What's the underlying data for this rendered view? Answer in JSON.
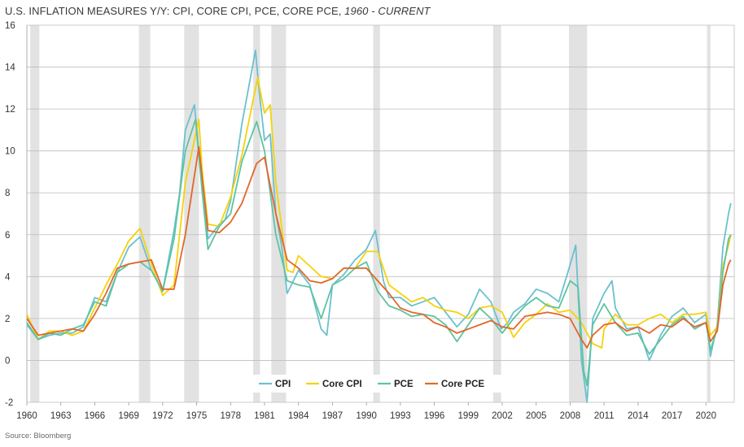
{
  "title": {
    "main": "U.S. INFLATION MEASURES Y/Y: CPI, CORE CPI, PCE, CORE PCE, ",
    "italic": "1960 - CURRENT"
  },
  "source": "Source: Bloomberg",
  "chart_data": {
    "type": "line",
    "title": "U.S. INFLATION MEASURES Y/Y: CPI, CORE CPI, PCE, CORE PCE, 1960 - CURRENT",
    "xlabel": "",
    "ylabel": "",
    "xlim": [
      1960,
      2022.5
    ],
    "ylim": [
      -2,
      16
    ],
    "x_ticks": [
      "1960",
      "1963",
      "1966",
      "1969",
      "1972",
      "1975",
      "1978",
      "1981",
      "1984",
      "1987",
      "1990",
      "1993",
      "1996",
      "1999",
      "2002",
      "2005",
      "2008",
      "2011",
      "2014",
      "2017",
      "2020"
    ],
    "y_ticks": [
      -2,
      0,
      2,
      4,
      6,
      8,
      10,
      12,
      14,
      16
    ],
    "grid": "horizontal",
    "legend_position": "bottom-center",
    "recessions": [
      [
        1960.3,
        1961.1
      ],
      [
        1969.9,
        1970.9
      ],
      [
        1973.9,
        1975.2
      ],
      [
        1980.0,
        1980.6
      ],
      [
        1981.6,
        1982.9
      ],
      [
        1990.6,
        1991.2
      ],
      [
        2001.2,
        2001.9
      ],
      [
        2007.9,
        2009.5
      ],
      [
        2020.1,
        2020.4
      ]
    ],
    "series": [
      {
        "name": "CPI",
        "color": "#6cc0d0",
        "points": [
          [
            1960,
            1.7
          ],
          [
            1961,
            1.0
          ],
          [
            1962,
            1.2
          ],
          [
            1963,
            1.3
          ],
          [
            1964,
            1.3
          ],
          [
            1965,
            1.6
          ],
          [
            1966,
            3.0
          ],
          [
            1967,
            2.8
          ],
          [
            1968,
            4.2
          ],
          [
            1969,
            5.4
          ],
          [
            1970,
            5.9
          ],
          [
            1971,
            4.3
          ],
          [
            1972,
            3.3
          ],
          [
            1973,
            6.2
          ],
          [
            1973.5,
            8.0
          ],
          [
            1974,
            11.0
          ],
          [
            1974.8,
            12.2
          ],
          [
            1975.3,
            9.5
          ],
          [
            1976,
            5.8
          ],
          [
            1977,
            6.5
          ],
          [
            1977.5,
            6.7
          ],
          [
            1978,
            7.6
          ],
          [
            1979,
            11.3
          ],
          [
            1980.2,
            14.8
          ],
          [
            1980.5,
            13.0
          ],
          [
            1981,
            10.5
          ],
          [
            1981.5,
            10.8
          ],
          [
            1982,
            7.0
          ],
          [
            1982.5,
            5.5
          ],
          [
            1983,
            3.2
          ],
          [
            1984,
            4.3
          ],
          [
            1985,
            3.6
          ],
          [
            1986,
            1.5
          ],
          [
            1986.5,
            1.2
          ],
          [
            1987,
            3.6
          ],
          [
            1988,
            4.1
          ],
          [
            1989,
            4.8
          ],
          [
            1990,
            5.3
          ],
          [
            1990.8,
            6.2
          ],
          [
            1991.5,
            3.8
          ],
          [
            1992,
            3.0
          ],
          [
            1993,
            3.0
          ],
          [
            1994,
            2.6
          ],
          [
            1995,
            2.8
          ],
          [
            1996,
            3.0
          ],
          [
            1997,
            2.3
          ],
          [
            1998,
            1.6
          ],
          [
            1999,
            2.2
          ],
          [
            2000,
            3.4
          ],
          [
            2001,
            2.8
          ],
          [
            2001.9,
            1.5
          ],
          [
            2002.5,
            1.8
          ],
          [
            2003,
            2.3
          ],
          [
            2004,
            2.7
          ],
          [
            2005,
            3.4
          ],
          [
            2006,
            3.2
          ],
          [
            2007,
            2.8
          ],
          [
            2007.8,
            4.2
          ],
          [
            2008.5,
            5.5
          ],
          [
            2009.0,
            0.0
          ],
          [
            2009.5,
            -2.0
          ],
          [
            2010,
            2.0
          ],
          [
            2011,
            3.2
          ],
          [
            2011.7,
            3.8
          ],
          [
            2012,
            2.5
          ],
          [
            2013,
            1.5
          ],
          [
            2014,
            1.6
          ],
          [
            2015,
            0.0
          ],
          [
            2016,
            1.2
          ],
          [
            2017,
            2.1
          ],
          [
            2018,
            2.5
          ],
          [
            2019,
            1.8
          ],
          [
            2020,
            2.2
          ],
          [
            2020.4,
            0.2
          ],
          [
            2021,
            1.7
          ],
          [
            2021.5,
            5.4
          ],
          [
            2022,
            7.0
          ],
          [
            2022.2,
            7.5
          ]
        ]
      },
      {
        "name": "Core CPI",
        "color": "#f5d20a",
        "points": [
          [
            1960,
            2.2
          ],
          [
            1961,
            1.0
          ],
          [
            1962,
            1.4
          ],
          [
            1963,
            1.4
          ],
          [
            1964,
            1.2
          ],
          [
            1965,
            1.4
          ],
          [
            1966,
            2.5
          ],
          [
            1967,
            3.6
          ],
          [
            1968,
            4.6
          ],
          [
            1969,
            5.7
          ],
          [
            1970,
            6.3
          ],
          [
            1971,
            4.6
          ],
          [
            1972,
            3.1
          ],
          [
            1973,
            3.6
          ],
          [
            1974,
            8.5
          ],
          [
            1975.2,
            11.5
          ],
          [
            1975.5,
            9.0
          ],
          [
            1976,
            6.5
          ],
          [
            1977,
            6.4
          ],
          [
            1978,
            7.8
          ],
          [
            1979,
            9.8
          ],
          [
            1980.4,
            13.5
          ],
          [
            1981,
            11.8
          ],
          [
            1981.5,
            12.2
          ],
          [
            1982,
            8.5
          ],
          [
            1983,
            4.3
          ],
          [
            1983.5,
            4.2
          ],
          [
            1984,
            5.0
          ],
          [
            1985,
            4.5
          ],
          [
            1986,
            4.0
          ],
          [
            1987,
            3.9
          ],
          [
            1988,
            4.4
          ],
          [
            1989,
            4.4
          ],
          [
            1990,
            5.2
          ],
          [
            1991,
            5.2
          ],
          [
            1992,
            3.6
          ],
          [
            1993,
            3.2
          ],
          [
            1994,
            2.8
          ],
          [
            1995,
            3.0
          ],
          [
            1996,
            2.6
          ],
          [
            1997,
            2.4
          ],
          [
            1998,
            2.3
          ],
          [
            1999,
            2.0
          ],
          [
            2000,
            2.5
          ],
          [
            2001,
            2.6
          ],
          [
            2002,
            2.3
          ],
          [
            2003,
            1.1
          ],
          [
            2004,
            1.8
          ],
          [
            2005,
            2.2
          ],
          [
            2006,
            2.7
          ],
          [
            2007,
            2.3
          ],
          [
            2008,
            2.4
          ],
          [
            2009,
            1.8
          ],
          [
            2010,
            0.8
          ],
          [
            2010.8,
            0.6
          ],
          [
            2011,
            1.5
          ],
          [
            2012,
            2.2
          ],
          [
            2013,
            1.7
          ],
          [
            2014,
            1.7
          ],
          [
            2015,
            2.0
          ],
          [
            2016,
            2.2
          ],
          [
            2017,
            1.8
          ],
          [
            2018,
            2.2
          ],
          [
            2019,
            2.2
          ],
          [
            2020,
            2.3
          ],
          [
            2020.4,
            1.2
          ],
          [
            2021,
            1.6
          ],
          [
            2021.5,
            4.5
          ],
          [
            2022,
            5.5
          ],
          [
            2022.2,
            6.0
          ]
        ]
      },
      {
        "name": "PCE",
        "color": "#5cc4a0",
        "points": [
          [
            1960,
            1.8
          ],
          [
            1961,
            1.0
          ],
          [
            1962,
            1.3
          ],
          [
            1963,
            1.2
          ],
          [
            1964,
            1.5
          ],
          [
            1965,
            1.7
          ],
          [
            1966,
            2.8
          ],
          [
            1967,
            2.6
          ],
          [
            1968,
            4.2
          ],
          [
            1969,
            4.6
          ],
          [
            1970,
            4.7
          ],
          [
            1971,
            4.3
          ],
          [
            1972,
            3.3
          ],
          [
            1973,
            5.8
          ],
          [
            1974,
            10.0
          ],
          [
            1974.9,
            11.5
          ],
          [
            1975.5,
            8.0
          ],
          [
            1976,
            5.3
          ],
          [
            1977,
            6.4
          ],
          [
            1978,
            7.0
          ],
          [
            1979,
            9.5
          ],
          [
            1980.3,
            11.4
          ],
          [
            1981,
            10.0
          ],
          [
            1982,
            6.0
          ],
          [
            1983,
            3.8
          ],
          [
            1984,
            3.6
          ],
          [
            1985,
            3.5
          ],
          [
            1986,
            2.0
          ],
          [
            1987,
            3.6
          ],
          [
            1988,
            3.9
          ],
          [
            1989,
            4.4
          ],
          [
            1990,
            4.7
          ],
          [
            1991,
            3.3
          ],
          [
            1992,
            2.6
          ],
          [
            1993,
            2.4
          ],
          [
            1994,
            2.1
          ],
          [
            1995,
            2.2
          ],
          [
            1996,
            2.1
          ],
          [
            1997,
            1.7
          ],
          [
            1998,
            0.9
          ],
          [
            1999,
            1.7
          ],
          [
            2000,
            2.5
          ],
          [
            2001,
            2.0
          ],
          [
            2002,
            1.3
          ],
          [
            2003,
            2.0
          ],
          [
            2004,
            2.6
          ],
          [
            2005,
            3.0
          ],
          [
            2006,
            2.6
          ],
          [
            2007,
            2.5
          ],
          [
            2008,
            3.8
          ],
          [
            2008.7,
            3.5
          ],
          [
            2009.2,
            -0.5
          ],
          [
            2009.5,
            -1.2
          ],
          [
            2010,
            1.7
          ],
          [
            2011,
            2.7
          ],
          [
            2012,
            1.8
          ],
          [
            2013,
            1.2
          ],
          [
            2014,
            1.3
          ],
          [
            2015,
            0.3
          ],
          [
            2016,
            1.0
          ],
          [
            2017,
            1.7
          ],
          [
            2018,
            2.1
          ],
          [
            2019,
            1.5
          ],
          [
            2020,
            1.8
          ],
          [
            2020.4,
            0.5
          ],
          [
            2021,
            1.5
          ],
          [
            2021.5,
            4.2
          ],
          [
            2022,
            5.8
          ],
          [
            2022.2,
            6.0
          ]
        ]
      },
      {
        "name": "Core PCE",
        "color": "#e2662a",
        "points": [
          [
            1960,
            2.0
          ],
          [
            1961,
            1.2
          ],
          [
            1962,
            1.3
          ],
          [
            1963,
            1.4
          ],
          [
            1964,
            1.5
          ],
          [
            1965,
            1.4
          ],
          [
            1966,
            2.2
          ],
          [
            1967,
            3.2
          ],
          [
            1968,
            4.4
          ],
          [
            1969,
            4.6
          ],
          [
            1970,
            4.7
          ],
          [
            1971,
            4.8
          ],
          [
            1972,
            3.4
          ],
          [
            1973,
            3.4
          ],
          [
            1974,
            6.0
          ],
          [
            1975.2,
            10.2
          ],
          [
            1975.6,
            8.2
          ],
          [
            1976,
            6.2
          ],
          [
            1977,
            6.1
          ],
          [
            1978,
            6.6
          ],
          [
            1979,
            7.5
          ],
          [
            1980.3,
            9.4
          ],
          [
            1981,
            9.7
          ],
          [
            1982,
            7.0
          ],
          [
            1983,
            4.8
          ],
          [
            1984,
            4.4
          ],
          [
            1985,
            3.8
          ],
          [
            1986,
            3.7
          ],
          [
            1987,
            3.9
          ],
          [
            1988,
            4.4
          ],
          [
            1989,
            4.4
          ],
          [
            1990,
            4.4
          ],
          [
            1991,
            3.8
          ],
          [
            1992,
            3.2
          ],
          [
            1993,
            2.5
          ],
          [
            1994,
            2.3
          ],
          [
            1995,
            2.2
          ],
          [
            1996,
            1.8
          ],
          [
            1997,
            1.6
          ],
          [
            1998,
            1.3
          ],
          [
            1999,
            1.5
          ],
          [
            2000,
            1.7
          ],
          [
            2001,
            1.9
          ],
          [
            2002,
            1.6
          ],
          [
            2003,
            1.5
          ],
          [
            2004,
            2.1
          ],
          [
            2005,
            2.2
          ],
          [
            2006,
            2.3
          ],
          [
            2007,
            2.2
          ],
          [
            2008,
            2.0
          ],
          [
            2009,
            1.0
          ],
          [
            2009.5,
            0.6
          ],
          [
            2010,
            1.2
          ],
          [
            2011,
            1.7
          ],
          [
            2012,
            1.8
          ],
          [
            2013,
            1.4
          ],
          [
            2014,
            1.6
          ],
          [
            2015,
            1.3
          ],
          [
            2016,
            1.7
          ],
          [
            2017,
            1.6
          ],
          [
            2018,
            2.0
          ],
          [
            2019,
            1.6
          ],
          [
            2020,
            1.8
          ],
          [
            2020.4,
            0.9
          ],
          [
            2021,
            1.4
          ],
          [
            2021.5,
            3.6
          ],
          [
            2022,
            4.6
          ],
          [
            2022.2,
            4.8
          ]
        ]
      }
    ]
  }
}
